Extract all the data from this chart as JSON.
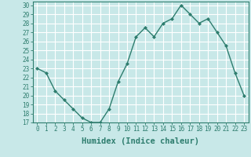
{
  "x": [
    0,
    1,
    2,
    3,
    4,
    5,
    6,
    7,
    8,
    9,
    10,
    11,
    12,
    13,
    14,
    15,
    16,
    17,
    18,
    19,
    20,
    21,
    22,
    23
  ],
  "y": [
    23,
    22.5,
    20.5,
    19.5,
    18.5,
    17.5,
    17,
    17,
    18.5,
    21.5,
    23.5,
    26.5,
    27.5,
    26.5,
    28,
    28.5,
    30,
    29,
    28,
    28.5,
    27,
    25.5,
    22.5,
    20
  ],
  "line_color": "#2e7d6e",
  "marker": "D",
  "marker_size": 2.0,
  "bg_color": "#c8e8e8",
  "grid_color": "#ffffff",
  "xlabel": "Humidex (Indice chaleur)",
  "xlim": [
    -0.5,
    23.5
  ],
  "ylim": [
    17,
    30.4
  ],
  "yticks": [
    17,
    18,
    19,
    20,
    21,
    22,
    23,
    24,
    25,
    26,
    27,
    28,
    29,
    30
  ],
  "xticks": [
    0,
    1,
    2,
    3,
    4,
    5,
    6,
    7,
    8,
    9,
    10,
    11,
    12,
    13,
    14,
    15,
    16,
    17,
    18,
    19,
    20,
    21,
    22,
    23
  ],
  "tick_color": "#2e7d6e",
  "label_color": "#2e7d6e",
  "spine_color": "#2e7d6e",
  "xlabel_fontsize": 7.5,
  "tick_fontsize": 5.5
}
